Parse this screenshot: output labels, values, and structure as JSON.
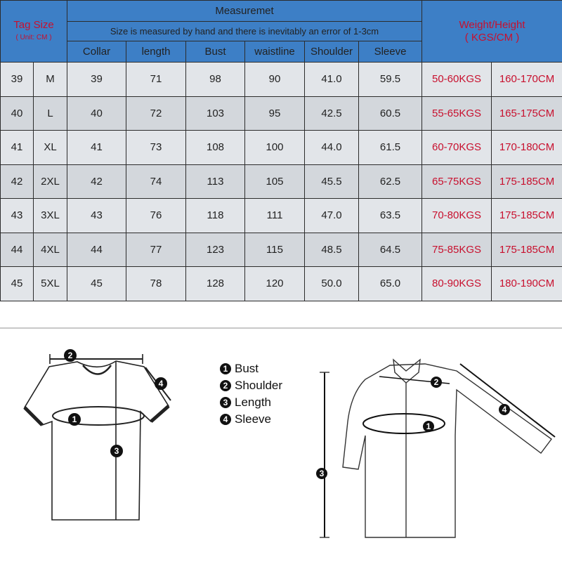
{
  "header": {
    "tag_size": "Tag Size",
    "unit": "( Unit: CM )",
    "measurement_title": "Measuremet",
    "note": "Size is measured by hand and there is inevitably an error of 1-3cm",
    "weight_height": "Weight/Height",
    "weight_height_unit": "( KGS/CM )",
    "columns": [
      "Collar",
      "length",
      "Bust",
      "waistline",
      "Shoulder",
      "Sleeve"
    ]
  },
  "rows": [
    {
      "tag": "39",
      "size": "M",
      "collar": "39",
      "length": "71",
      "bust": "98",
      "waist": "90",
      "shoulder": "41.0",
      "sleeve": "59.5",
      "weight": "50-60KGS",
      "height": "160-170CM"
    },
    {
      "tag": "40",
      "size": "L",
      "collar": "40",
      "length": "72",
      "bust": "103",
      "waist": "95",
      "shoulder": "42.5",
      "sleeve": "60.5",
      "weight": "55-65KGS",
      "height": "165-175CM"
    },
    {
      "tag": "41",
      "size": "XL",
      "collar": "41",
      "length": "73",
      "bust": "108",
      "waist": "100",
      "shoulder": "44.0",
      "sleeve": "61.5",
      "weight": "60-70KGS",
      "height": "170-180CM"
    },
    {
      "tag": "42",
      "size": "2XL",
      "collar": "42",
      "length": "74",
      "bust": "113",
      "waist": "105",
      "shoulder": "45.5",
      "sleeve": "62.5",
      "weight": "65-75KGS",
      "height": "175-185CM"
    },
    {
      "tag": "43",
      "size": "3XL",
      "collar": "43",
      "length": "76",
      "bust": "118",
      "waist": "111",
      "shoulder": "47.0",
      "sleeve": "63.5",
      "weight": "70-80KGS",
      "height": "175-185CM"
    },
    {
      "tag": "44",
      "size": "4XL",
      "collar": "44",
      "length": "77",
      "bust": "123",
      "waist": "115",
      "shoulder": "48.5",
      "sleeve": "64.5",
      "weight": "75-85KGS",
      "height": "175-185CM"
    },
    {
      "tag": "45",
      "size": "5XL",
      "collar": "45",
      "length": "78",
      "bust": "128",
      "waist": "120",
      "shoulder": "50.0",
      "sleeve": "65.0",
      "weight": "80-90KGS",
      "height": "180-190CM"
    }
  ],
  "legend": [
    {
      "num": "1",
      "label": "Bust"
    },
    {
      "num": "2",
      "label": "Shoulder"
    },
    {
      "num": "3",
      "label": "Length"
    },
    {
      "num": "4",
      "label": "Sleeve"
    }
  ],
  "colors": {
    "header": "#3d7fc6",
    "accent_red": "#c8102e",
    "row_light": "#e2e5e9",
    "row_dark": "#d3d7dc"
  }
}
